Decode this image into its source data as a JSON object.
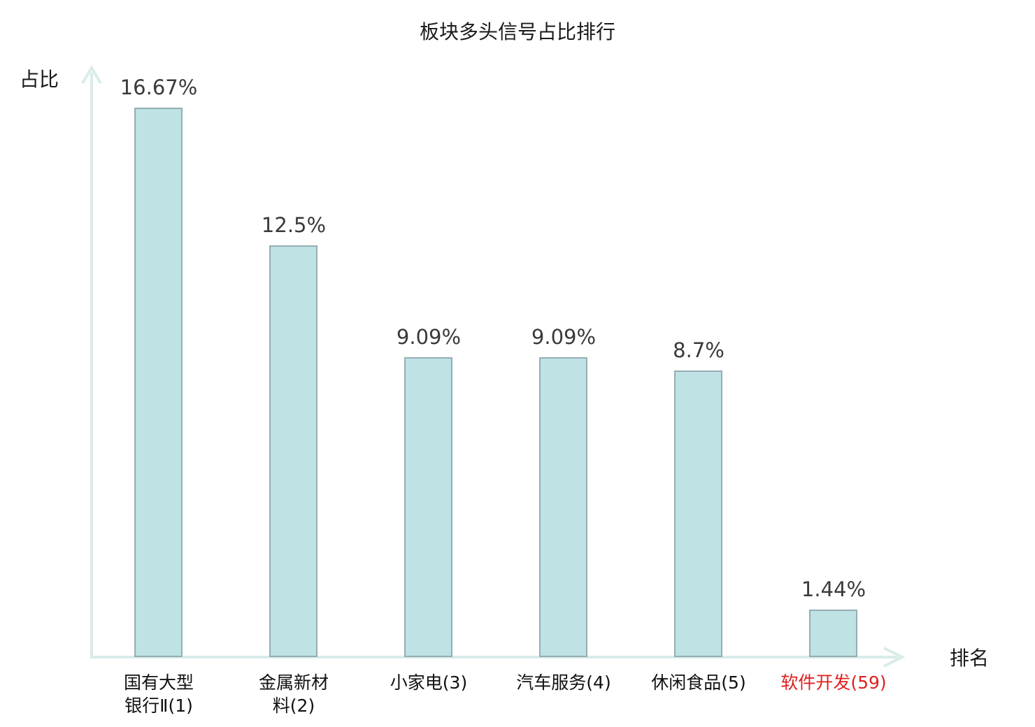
{
  "chart_data": {
    "type": "bar",
    "title": "板块多头信号占比排行",
    "xlabel": "排名",
    "ylabel": "占比",
    "categories": [
      "国有大型\n银行Ⅱ(1)",
      "金属新材\n料(2)",
      "小家电(3)",
      "汽车服务(4)",
      "休闲食品(5)",
      "软件开发(59)"
    ],
    "values": [
      16.67,
      12.5,
      9.09,
      9.09,
      8.7,
      1.44
    ],
    "value_labels": [
      "16.67%",
      "12.5%",
      "9.09%",
      "9.09%",
      "8.7%",
      "1.44%"
    ],
    "highlight_index": 5,
    "ylim": [
      0,
      18
    ],
    "grid": false,
    "legend": null,
    "colors": {
      "bar_fill": "#bfe2e5",
      "bar_border": "#94aeb2",
      "axis": "#d9ece9",
      "value_label": "#3a3a3a",
      "category_label": "#111111",
      "highlight_label": "#e02020"
    }
  }
}
